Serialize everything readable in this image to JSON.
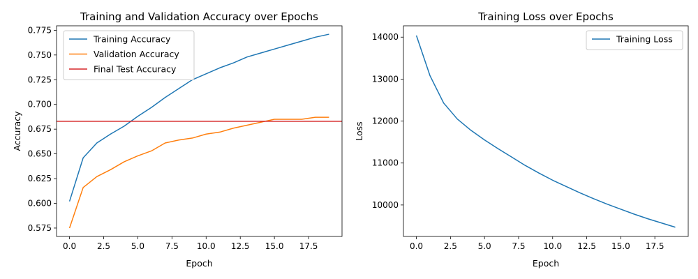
{
  "chart_data": [
    {
      "type": "line",
      "title": "Training and Validation Accuracy over Epochs",
      "xlabel": "Epoch",
      "ylabel": "Accuracy",
      "xlim": [
        -0.95,
        19.95
      ],
      "ylim": [
        0.5665,
        0.7795
      ],
      "xticks": [
        0.0,
        2.5,
        5.0,
        7.5,
        10.0,
        12.5,
        15.0,
        17.5
      ],
      "xtick_labels": [
        "0.0",
        "2.5",
        "5.0",
        "7.5",
        "10.0",
        "12.5",
        "15.0",
        "17.5"
      ],
      "yticks": [
        0.575,
        0.6,
        0.625,
        0.65,
        0.675,
        0.7,
        0.725,
        0.75,
        0.775
      ],
      "ytick_labels": [
        "0.575",
        "0.600",
        "0.625",
        "0.650",
        "0.675",
        "0.700",
        "0.725",
        "0.750",
        "0.775"
      ],
      "grid": false,
      "legend_position": "top-left",
      "x": [
        0,
        1,
        2,
        3,
        4,
        5,
        6,
        7,
        8,
        9,
        10,
        11,
        12,
        13,
        14,
        15,
        16,
        17,
        18,
        19
      ],
      "series": [
        {
          "name": "Training Accuracy",
          "color": "#1f77b4",
          "values": [
            0.602,
            0.646,
            0.661,
            0.67,
            0.678,
            0.688,
            0.697,
            0.707,
            0.716,
            0.725,
            0.731,
            0.737,
            0.742,
            0.748,
            0.752,
            0.756,
            0.76,
            0.764,
            0.768,
            0.771
          ]
        },
        {
          "name": "Validation Accuracy",
          "color": "#ff7f0e",
          "values": [
            0.575,
            0.616,
            0.627,
            0.634,
            0.642,
            0.648,
            0.653,
            0.661,
            0.664,
            0.666,
            0.67,
            0.672,
            0.676,
            0.679,
            0.682,
            0.685,
            0.685,
            0.685,
            0.687,
            0.687
          ]
        }
      ],
      "hlines": [
        {
          "name": "Final Test Accuracy",
          "color": "#d62728",
          "value": 0.683
        }
      ]
    },
    {
      "type": "line",
      "title": "Training Loss over Epochs",
      "xlabel": "Epoch",
      "ylabel": "Loss",
      "xlim": [
        -0.95,
        19.95
      ],
      "ylim": [
        9250,
        14270
      ],
      "xticks": [
        0.0,
        2.5,
        5.0,
        7.5,
        10.0,
        12.5,
        15.0,
        17.5
      ],
      "xtick_labels": [
        "0.0",
        "2.5",
        "5.0",
        "7.5",
        "10.0",
        "12.5",
        "15.0",
        "17.5"
      ],
      "yticks": [
        10000,
        11000,
        12000,
        13000,
        14000
      ],
      "ytick_labels": [
        "10000",
        "11000",
        "12000",
        "13000",
        "14000"
      ],
      "grid": false,
      "legend_position": "top-right",
      "x": [
        0,
        1,
        2,
        3,
        4,
        5,
        6,
        7,
        8,
        9,
        10,
        11,
        12,
        13,
        14,
        15,
        16,
        17,
        18,
        19
      ],
      "series": [
        {
          "name": "Training Loss",
          "color": "#1f77b4",
          "values": [
            14040,
            13080,
            12430,
            12050,
            11780,
            11550,
            11340,
            11140,
            10940,
            10760,
            10590,
            10440,
            10290,
            10150,
            10020,
            9900,
            9780,
            9670,
            9570,
            9470
          ]
        }
      ],
      "hlines": []
    }
  ]
}
